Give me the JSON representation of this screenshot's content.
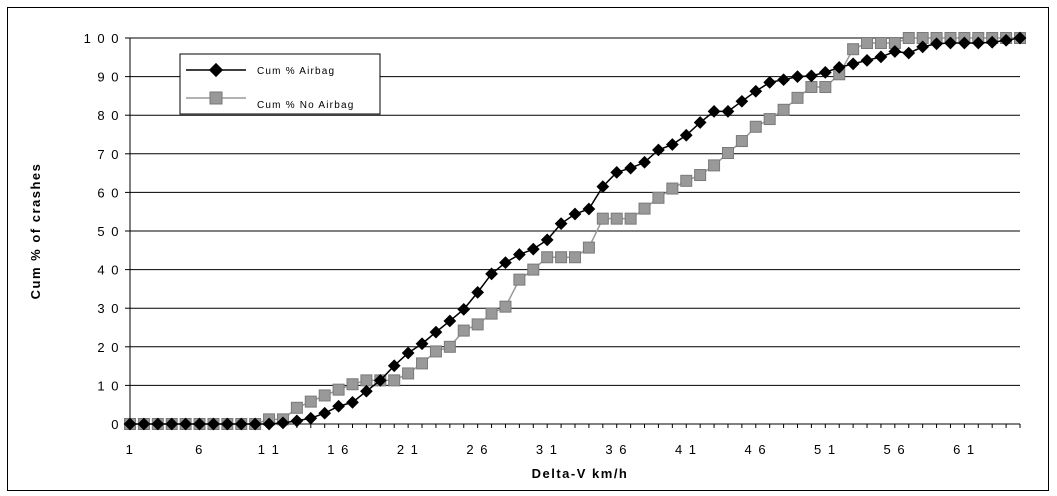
{
  "chart_data": {
    "type": "line",
    "title": "",
    "xlabel": "Delta-V km/h",
    "ylabel": "Cum % of crashes",
    "x": [
      1,
      2,
      3,
      4,
      5,
      6,
      7,
      8,
      9,
      10,
      11,
      12,
      13,
      14,
      15,
      16,
      17,
      18,
      19,
      20,
      21,
      22,
      23,
      24,
      25,
      26,
      27,
      28,
      29,
      30,
      31,
      32,
      33,
      34,
      35,
      36,
      37,
      38,
      39,
      40,
      41,
      42,
      43,
      44,
      45,
      46,
      47,
      48,
      49,
      50,
      51,
      52,
      53,
      54,
      55,
      56,
      57,
      58,
      59,
      60,
      61,
      62,
      63,
      64,
      65
    ],
    "x_tick_labels": [
      "1",
      "6",
      "1 1",
      "1 6",
      "2 1",
      "2 6",
      "3 1",
      "3 6",
      "4 1",
      "4 6",
      "5 1",
      "5 6",
      "6 1"
    ],
    "x_tick_values": [
      1,
      6,
      11,
      16,
      21,
      26,
      31,
      36,
      41,
      46,
      51,
      56,
      61
    ],
    "y_tick_labels": [
      "0",
      "1 0",
      "2 0",
      "3 0",
      "4 0",
      "5 0",
      "6 0",
      "7 0",
      "8 0",
      "9 0",
      "1 0 0"
    ],
    "y_tick_values": [
      0,
      10,
      20,
      30,
      40,
      50,
      60,
      70,
      80,
      90,
      100
    ],
    "ylim": [
      0,
      100
    ],
    "xlim": [
      1,
      65
    ],
    "grid": "horizontal",
    "legend_position": "top-left",
    "series": [
      {
        "name": "Cum % Airbag",
        "marker": "diamond",
        "color": "#000000",
        "values": [
          0,
          0,
          0,
          0,
          0,
          0,
          0,
          0,
          0,
          0,
          0,
          0.3,
          0.8,
          1.5,
          2.8,
          4.6,
          5.6,
          8.5,
          11.3,
          15.1,
          18.4,
          20.8,
          23.8,
          26.7,
          29.7,
          34.1,
          38.9,
          41.8,
          43.9,
          45.3,
          47.7,
          51.9,
          54.4,
          55.7,
          61.5,
          65.2,
          66.3,
          67.8,
          71,
          72.4,
          74.8,
          78.1,
          81,
          81,
          83.6,
          86.2,
          88.5,
          89.2,
          90,
          90.2,
          91.1,
          92.4,
          93.3,
          94.2,
          95.1,
          96.5,
          96.1,
          97.7,
          98.5,
          98.7,
          98.7,
          98.7,
          98.9,
          99.4,
          100
        ]
      },
      {
        "name": "Cum % No Airbag",
        "marker": "square",
        "color": "#999999",
        "values": [
          0,
          0,
          0,
          0,
          0,
          0,
          0,
          0,
          0,
          0,
          1.2,
          1.2,
          4.2,
          5.8,
          7.4,
          8.9,
          10.3,
          11.3,
          11.3,
          11.3,
          13.1,
          15.7,
          18.8,
          20,
          24.2,
          25.8,
          28.6,
          30.4,
          37.4,
          40,
          43.2,
          43.2,
          43.2,
          45.7,
          53.2,
          53.2,
          53.2,
          55.8,
          58.6,
          61,
          63,
          64.5,
          67,
          70.2,
          73.3,
          77,
          79,
          81.4,
          84.5,
          87.3,
          87.3,
          90.6,
          97.1,
          98.7,
          98.7,
          98.7,
          100,
          100,
          100,
          100,
          100,
          100,
          100,
          100,
          100
        ]
      }
    ]
  }
}
